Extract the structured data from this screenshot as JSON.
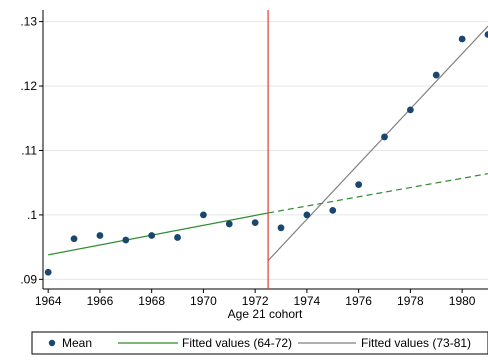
{
  "chart_data": {
    "type": "scatter",
    "title": "",
    "xlabel": "Age 21 cohort",
    "ylabel": "",
    "xlim": [
      1963.8,
      1981
    ],
    "ylim": [
      0.0885,
      0.1318
    ],
    "x_ticks": [
      1964,
      1966,
      1968,
      1970,
      1972,
      1974,
      1976,
      1978,
      1980
    ],
    "x_tick_labels": [
      "1964",
      "1966",
      "1968",
      "1970",
      "1972",
      "1974",
      "1976",
      "1978",
      "1980"
    ],
    "y_ticks": [
      0.09,
      0.1,
      0.11,
      0.12,
      0.13
    ],
    "y_tick_labels": [
      ".09",
      ".1",
      ".11",
      ".12",
      ".13"
    ],
    "grid": "horizontal",
    "cutoff_line": {
      "x": 1972.5,
      "color": "#e8392f"
    },
    "series": [
      {
        "name": "Mean",
        "kind": "scatter",
        "color": "#1a476f",
        "x": [
          1964,
          1965,
          1966,
          1967,
          1968,
          1969,
          1970,
          1971,
          1972,
          1973,
          1974,
          1975,
          1976,
          1977,
          1978,
          1979,
          1980,
          1981
        ],
        "y": [
          0.0911,
          0.0963,
          0.0968,
          0.0961,
          0.0968,
          0.0965,
          0.1,
          0.0986,
          0.0988,
          0.098,
          0.1,
          0.1007,
          0.1047,
          0.1121,
          0.1163,
          0.1217,
          0.1273,
          0.128
        ]
      },
      {
        "name": "Fitted values (64-72)",
        "kind": "line",
        "color": "#2e8b2e",
        "segments": [
          {
            "x": [
              1964,
              1972.5
            ],
            "y": [
              0.0938,
              0.1003
            ],
            "style": "solid"
          },
          {
            "x": [
              1972.5,
              1981
            ],
            "y": [
              0.1003,
              0.1064
            ],
            "style": "dashed"
          }
        ]
      },
      {
        "name": "Fitted values (73-81)",
        "kind": "line",
        "color": "#808080",
        "segments": [
          {
            "x": [
              1972.5,
              1981
            ],
            "y": [
              0.0929,
              0.1293
            ],
            "style": "solid"
          }
        ]
      }
    ],
    "legend": {
      "placement": "bottom",
      "entries": [
        "Mean",
        "Fitted values (64-72)",
        "Fitted values (73-81)"
      ]
    }
  }
}
